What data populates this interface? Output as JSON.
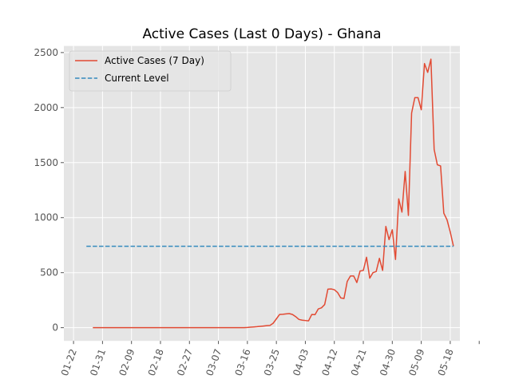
{
  "chart_data": {
    "type": "line",
    "title": "Active Cases (Last 0 Days) - Ghana",
    "xlabel": "",
    "ylabel": "",
    "grid": true,
    "legend_position": "top-left",
    "x_ticks": [
      "01-22",
      "01-31",
      "02-09",
      "02-18",
      "02-27",
      "03-07",
      "03-16",
      "03-25",
      "04-03",
      "04-12",
      "04-21",
      "04-30",
      "05-09",
      "05-18",
      ""
    ],
    "x_range": [
      "01-19",
      "05-21"
    ],
    "ylim": [
      -120,
      2560
    ],
    "y_ticks": [
      0,
      500,
      1000,
      1500,
      2000,
      2500
    ],
    "series": [
      {
        "name": "Active Cases (7 Day)",
        "color": "#E24A33",
        "style": "solid",
        "points": [
          [
            "01-28",
            0
          ],
          [
            "02-05",
            0
          ],
          [
            "02-15",
            0
          ],
          [
            "02-25",
            0
          ],
          [
            "03-05",
            0
          ],
          [
            "03-12",
            0
          ],
          [
            "03-15",
            0
          ],
          [
            "03-16",
            2
          ],
          [
            "03-17",
            5
          ],
          [
            "03-18",
            7
          ],
          [
            "03-19",
            9
          ],
          [
            "03-20",
            12
          ],
          [
            "03-21",
            15
          ],
          [
            "03-22",
            18
          ],
          [
            "03-23",
            20
          ],
          [
            "03-24",
            40
          ],
          [
            "03-25",
            80
          ],
          [
            "03-26",
            120
          ],
          [
            "03-27",
            122
          ],
          [
            "03-28",
            125
          ],
          [
            "03-29",
            128
          ],
          [
            "03-30",
            120
          ],
          [
            "03-31",
            100
          ],
          [
            "04-01",
            75
          ],
          [
            "04-02",
            68
          ],
          [
            "04-03",
            65
          ],
          [
            "04-04",
            62
          ],
          [
            "04-05",
            120
          ],
          [
            "04-06",
            118
          ],
          [
            "04-07",
            170
          ],
          [
            "04-08",
            180
          ],
          [
            "04-09",
            210
          ],
          [
            "04-10",
            350
          ],
          [
            "04-11",
            352
          ],
          [
            "04-12",
            345
          ],
          [
            "04-13",
            320
          ],
          [
            "04-14",
            270
          ],
          [
            "04-15",
            265
          ],
          [
            "04-16",
            420
          ],
          [
            "04-17",
            470
          ],
          [
            "04-18",
            470
          ],
          [
            "04-19",
            410
          ],
          [
            "04-20",
            515
          ],
          [
            "04-21",
            520
          ],
          [
            "04-22",
            640
          ],
          [
            "04-23",
            450
          ],
          [
            "04-24",
            500
          ],
          [
            "04-25",
            510
          ],
          [
            "04-26",
            630
          ],
          [
            "04-27",
            520
          ],
          [
            "04-28",
            920
          ],
          [
            "04-29",
            800
          ],
          [
            "04-30",
            890
          ],
          [
            "05-01",
            620
          ],
          [
            "05-02",
            1170
          ],
          [
            "05-03",
            1050
          ],
          [
            "05-04",
            1420
          ],
          [
            "05-05",
            1020
          ],
          [
            "05-06",
            1950
          ],
          [
            "05-07",
            2090
          ],
          [
            "05-08",
            2090
          ],
          [
            "05-09",
            1980
          ],
          [
            "05-10",
            2400
          ],
          [
            "05-11",
            2320
          ],
          [
            "05-12",
            2440
          ],
          [
            "05-13",
            1620
          ],
          [
            "05-14",
            1480
          ],
          [
            "05-15",
            1470
          ],
          [
            "05-16",
            1040
          ],
          [
            "05-17",
            980
          ],
          [
            "05-18",
            870
          ],
          [
            "05-19",
            740
          ]
        ]
      },
      {
        "name": "Current Level",
        "color": "#348ABD",
        "style": "dashed",
        "points": [
          [
            "01-26",
            740
          ],
          [
            "05-19",
            740
          ]
        ]
      }
    ]
  }
}
